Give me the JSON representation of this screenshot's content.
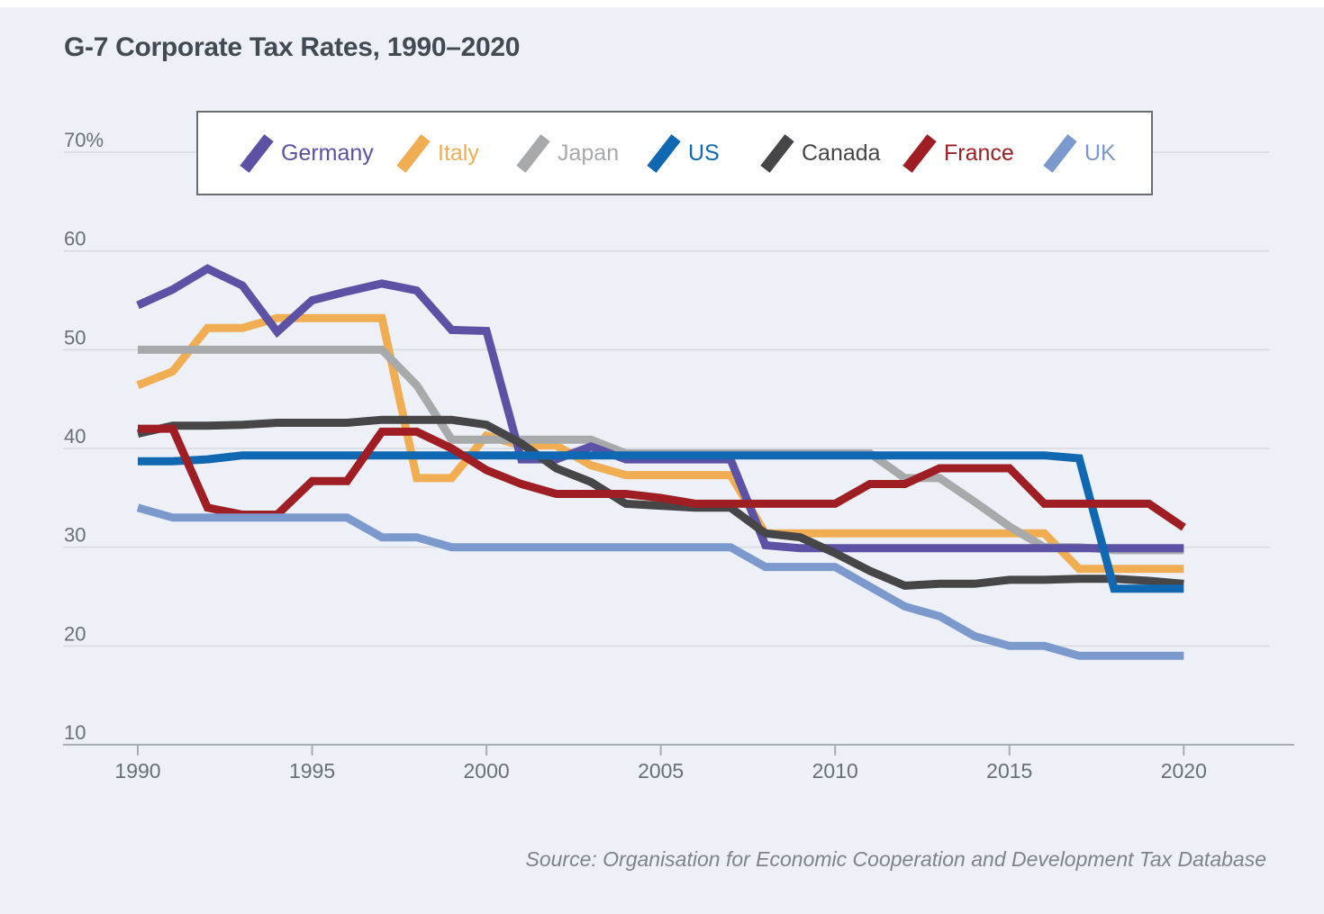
{
  "page": {
    "title": "G-7 Corporate Tax Rates, 1990–2020",
    "source": "Source: Organisation for Economic Cooperation and Development Tax Database",
    "background_color": "#edf1f7",
    "title_color": "#424a52",
    "source_color": "#7d838a"
  },
  "axes_style": {
    "gridline_color": "#d7dbe0",
    "axis_line_color": "#a6adb5",
    "tick_label_color": "#686f76"
  },
  "chart_data": {
    "type": "line",
    "title": "G-7 Corporate Tax Rates, 1990–2020",
    "xlabel": "",
    "ylabel": "",
    "unit": "percent",
    "grid": "horizontal",
    "legend_position": "top",
    "xlim": [
      1990,
      2020
    ],
    "ylim": [
      10,
      70
    ],
    "x_ticks": [
      1990,
      1995,
      2000,
      2005,
      2010,
      2015,
      2020
    ],
    "y_ticks": [
      {
        "label": "70%",
        "value": 70
      },
      {
        "label": "60",
        "value": 60
      },
      {
        "label": "50",
        "value": 50
      },
      {
        "label": "40",
        "value": 40
      },
      {
        "label": "30",
        "value": 30
      },
      {
        "label": "20",
        "value": 20
      },
      {
        "label": "10",
        "value": 10
      }
    ],
    "years": [
      1990,
      1991,
      1992,
      1993,
      1994,
      1995,
      1996,
      1997,
      1998,
      1999,
      2000,
      2001,
      2002,
      2003,
      2004,
      2005,
      2006,
      2007,
      2008,
      2009,
      2010,
      2011,
      2012,
      2013,
      2014,
      2015,
      2016,
      2017,
      2018,
      2019,
      2020
    ],
    "series": [
      {
        "name": "Germany",
        "color": "#5b51a5",
        "values": [
          54.5,
          56.1,
          58.2,
          56.5,
          51.8,
          55.0,
          55.9,
          56.7,
          56.0,
          52.0,
          51.9,
          38.9,
          38.9,
          40.2,
          38.9,
          38.9,
          38.9,
          38.9,
          30.2,
          29.9,
          29.9,
          29.9,
          29.9,
          29.9,
          29.9,
          29.9,
          29.9,
          29.9,
          29.9,
          29.9,
          29.9
        ]
      },
      {
        "name": "Italy",
        "color": "#f0ad52",
        "values": [
          46.4,
          47.8,
          52.2,
          52.2,
          53.2,
          53.2,
          53.2,
          53.2,
          37.0,
          37.0,
          41.3,
          40.3,
          40.3,
          38.3,
          37.3,
          37.3,
          37.3,
          37.3,
          31.4,
          31.4,
          31.4,
          31.4,
          31.4,
          31.4,
          31.4,
          31.4,
          31.4,
          27.8,
          27.8,
          27.8,
          27.8
        ]
      },
      {
        "name": "Japan",
        "color": "#a7a9ab",
        "values": [
          50.0,
          50.0,
          50.0,
          50.0,
          50.0,
          50.0,
          50.0,
          50.0,
          46.4,
          40.9,
          40.9,
          40.9,
          40.9,
          40.9,
          39.5,
          39.5,
          39.5,
          39.5,
          39.5,
          39.5,
          39.5,
          39.5,
          37.0,
          37.0,
          34.6,
          32.1,
          30.0,
          30.0,
          29.7,
          29.7,
          29.7
        ]
      },
      {
        "name": "US",
        "color": "#0f68b1",
        "values": [
          38.7,
          38.7,
          38.9,
          39.3,
          39.3,
          39.3,
          39.3,
          39.3,
          39.3,
          39.3,
          39.3,
          39.3,
          39.3,
          39.3,
          39.3,
          39.3,
          39.3,
          39.3,
          39.3,
          39.3,
          39.3,
          39.3,
          39.3,
          39.3,
          39.3,
          39.3,
          39.3,
          39.0,
          25.8,
          25.8,
          25.8
        ]
      },
      {
        "name": "Canada",
        "color": "#464649",
        "values": [
          41.5,
          42.3,
          42.3,
          42.4,
          42.6,
          42.6,
          42.6,
          42.9,
          42.9,
          42.9,
          42.4,
          40.5,
          38.0,
          36.6,
          34.4,
          34.2,
          34.0,
          34.0,
          31.4,
          31.0,
          29.4,
          27.6,
          26.1,
          26.3,
          26.3,
          26.7,
          26.7,
          26.8,
          26.8,
          26.6,
          26.3
        ]
      },
      {
        "name": "France",
        "color": "#9e1e24",
        "values": [
          42.0,
          42.0,
          34.0,
          33.3,
          33.3,
          36.7,
          36.7,
          41.7,
          41.7,
          40.0,
          37.8,
          36.4,
          35.4,
          35.4,
          35.4,
          35.0,
          34.4,
          34.4,
          34.4,
          34.4,
          34.4,
          36.4,
          36.4,
          38.0,
          38.0,
          38.0,
          34.4,
          34.4,
          34.4,
          34.4,
          32.0
        ]
      },
      {
        "name": "UK",
        "color": "#7c99cd",
        "values": [
          34,
          33,
          33,
          33,
          33,
          33,
          33,
          31,
          31,
          30,
          30,
          30,
          30,
          30,
          30,
          30,
          30,
          30,
          28,
          28,
          28,
          26,
          24,
          23,
          21,
          20,
          20,
          19,
          19,
          19,
          19
        ]
      }
    ],
    "draw_order": [
      "Italy",
      "Japan",
      "Germany",
      "Canada",
      "US",
      "France",
      "UK"
    ]
  }
}
